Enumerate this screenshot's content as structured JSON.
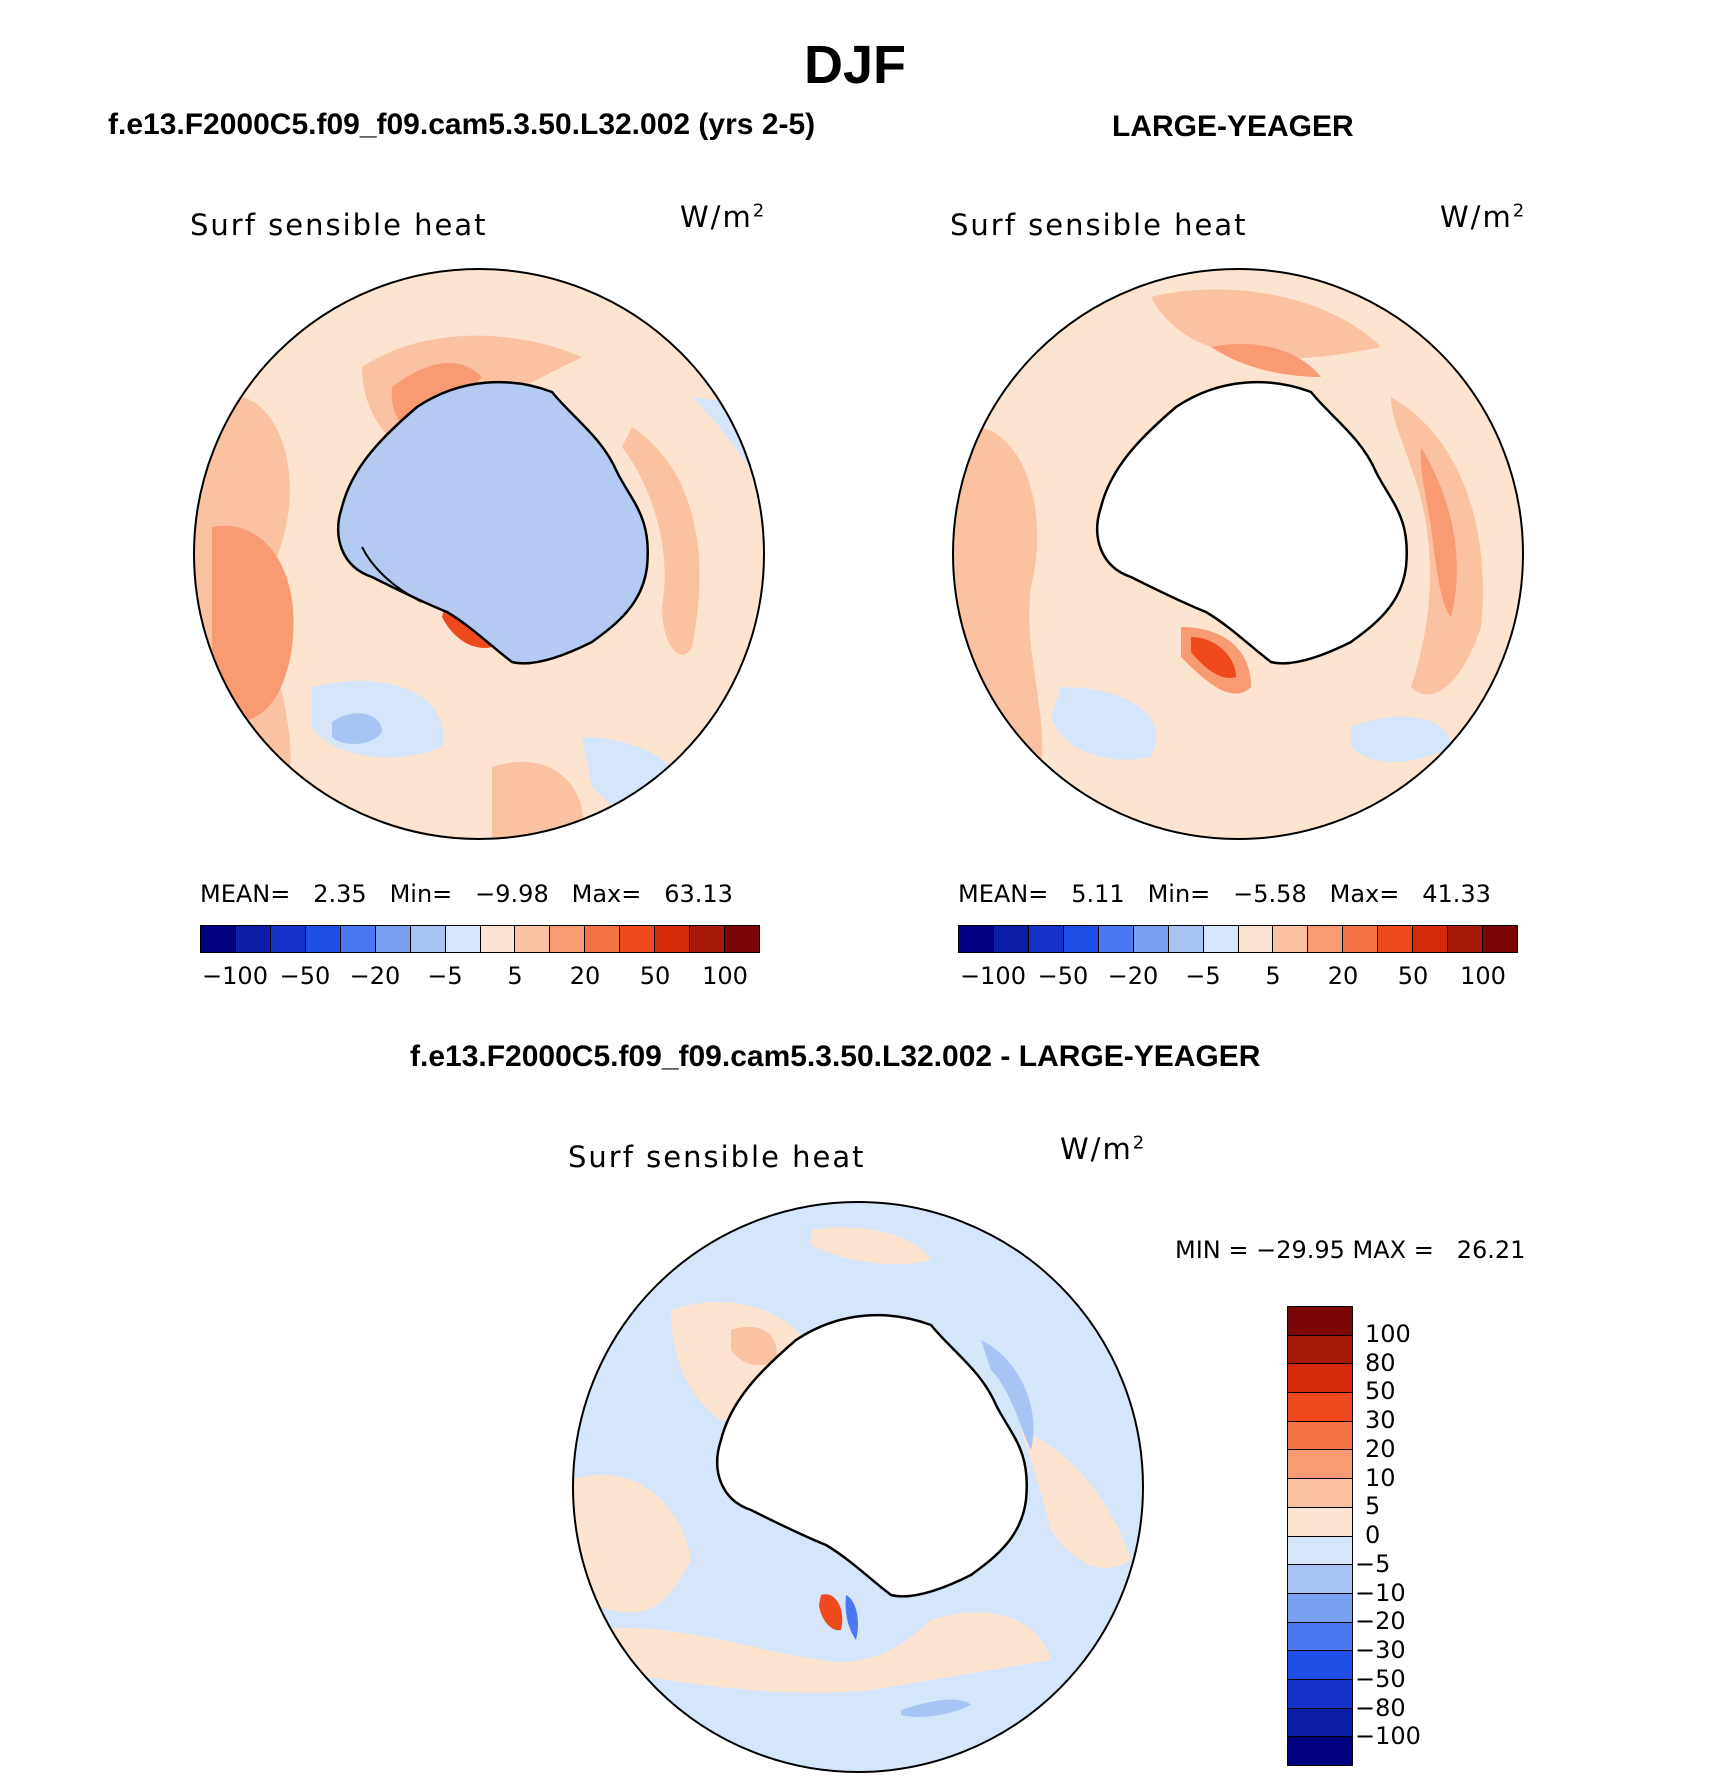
{
  "title": "DJF",
  "panels": [
    {
      "case_title": "f.e13.F2000C5.f09_f09.cam5.3.50.L32.002 (yrs 2-5)",
      "variable": "Surf  sensible  heat",
      "units_base": "W/m",
      "units_exp": "2",
      "stats": {
        "mean_label": "MEAN=",
        "mean_value": "2.35",
        "min_label": "Min=",
        "min_value": "−9.98",
        "max_label": "Max=",
        "max_value": "63.13"
      }
    },
    {
      "case_title": "LARGE-YEAGER",
      "variable": "Surf  sensible  heat",
      "units_base": "W/m",
      "units_exp": "2",
      "stats": {
        "mean_label": "MEAN=",
        "mean_value": "5.11",
        "min_label": "Min=",
        "min_value": "−5.58",
        "max_label": "Max=",
        "max_value": "41.33"
      }
    }
  ],
  "diff_panel": {
    "case_title": "f.e13.F2000C5.f09_f09.cam5.3.50.L32.002 - LARGE-YEAGER",
    "variable": "Surf  sensible  heat",
    "units_base": "W/m",
    "units_exp": "2",
    "minmax_text": "MIN = −29.95 MAX =   26.21"
  },
  "colorbar_main": {
    "colors": [
      "#000080",
      "#0a1ea8",
      "#1432c8",
      "#1f4ee6",
      "#4a78f0",
      "#7aa0f2",
      "#a8c4f5",
      "#d6e6fa",
      "#fde4d0",
      "#fbc2a2",
      "#f89a72",
      "#f47446",
      "#ee4a1e",
      "#d42a0a",
      "#a81a08",
      "#7a0606"
    ],
    "tick_labels": [
      "−100",
      "−50",
      "−20",
      "−5",
      "5",
      "20",
      "50",
      "100"
    ]
  },
  "colorbar_diff": {
    "colors_top_to_bottom": [
      "#7a0606",
      "#a81a08",
      "#d42a0a",
      "#ee4a1e",
      "#f47446",
      "#f89a72",
      "#fbc2a2",
      "#fde4d0",
      "#d6e6fa",
      "#a8c4f5",
      "#7aa0f2",
      "#4a78f0",
      "#1f4ee6",
      "#1432c8",
      "#0a1ea8",
      "#000080"
    ],
    "tick_labels": [
      "100",
      "80",
      "50",
      "30",
      "20",
      "10",
      "5",
      "0",
      "−5",
      "−10",
      "−20",
      "−30",
      "−50",
      "−80",
      "−100"
    ]
  },
  "maps": [
    {
      "background": "#fde4d0",
      "land_fill": "#b4caf3"
    },
    {
      "background": "#fde4d0",
      "land_fill": "#ffffff"
    },
    {
      "background": "#d6e6fa",
      "land_fill": "#ffffff"
    }
  ]
}
